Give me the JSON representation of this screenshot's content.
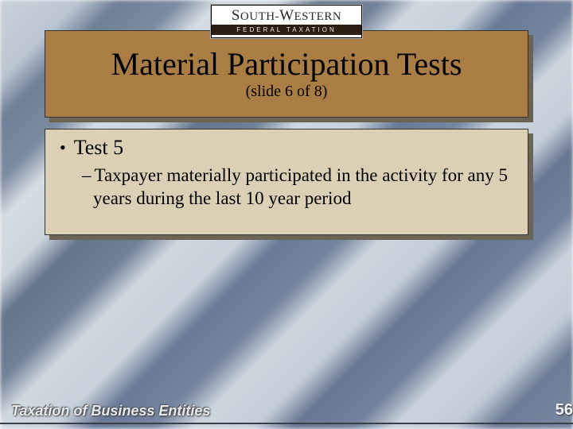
{
  "logo": {
    "top_text": "South-Western",
    "bottom_text": "FEDERAL TAXATION"
  },
  "title": {
    "main": "Material Participation Tests",
    "sub": "(slide 6 of 8)"
  },
  "content": {
    "bullet1": "Test 5",
    "sub1": "Taxpayer materially participated in the activity for any 5 years during the last 10 year period"
  },
  "footer": {
    "left": "Taxation of Business Entities",
    "page": "56"
  },
  "colors": {
    "title_panel": "#a97d44",
    "content_panel": "#dbcfb6",
    "shadow": "#6b6352",
    "logo_bar": "#2c1d10"
  },
  "layout": {
    "slide_width": 720,
    "slide_height": 540,
    "title_fontsize": 40,
    "subtitle_fontsize": 20,
    "body_fontsize_l1": 26,
    "body_fontsize_l2": 23,
    "footer_fontsize": 18
  }
}
